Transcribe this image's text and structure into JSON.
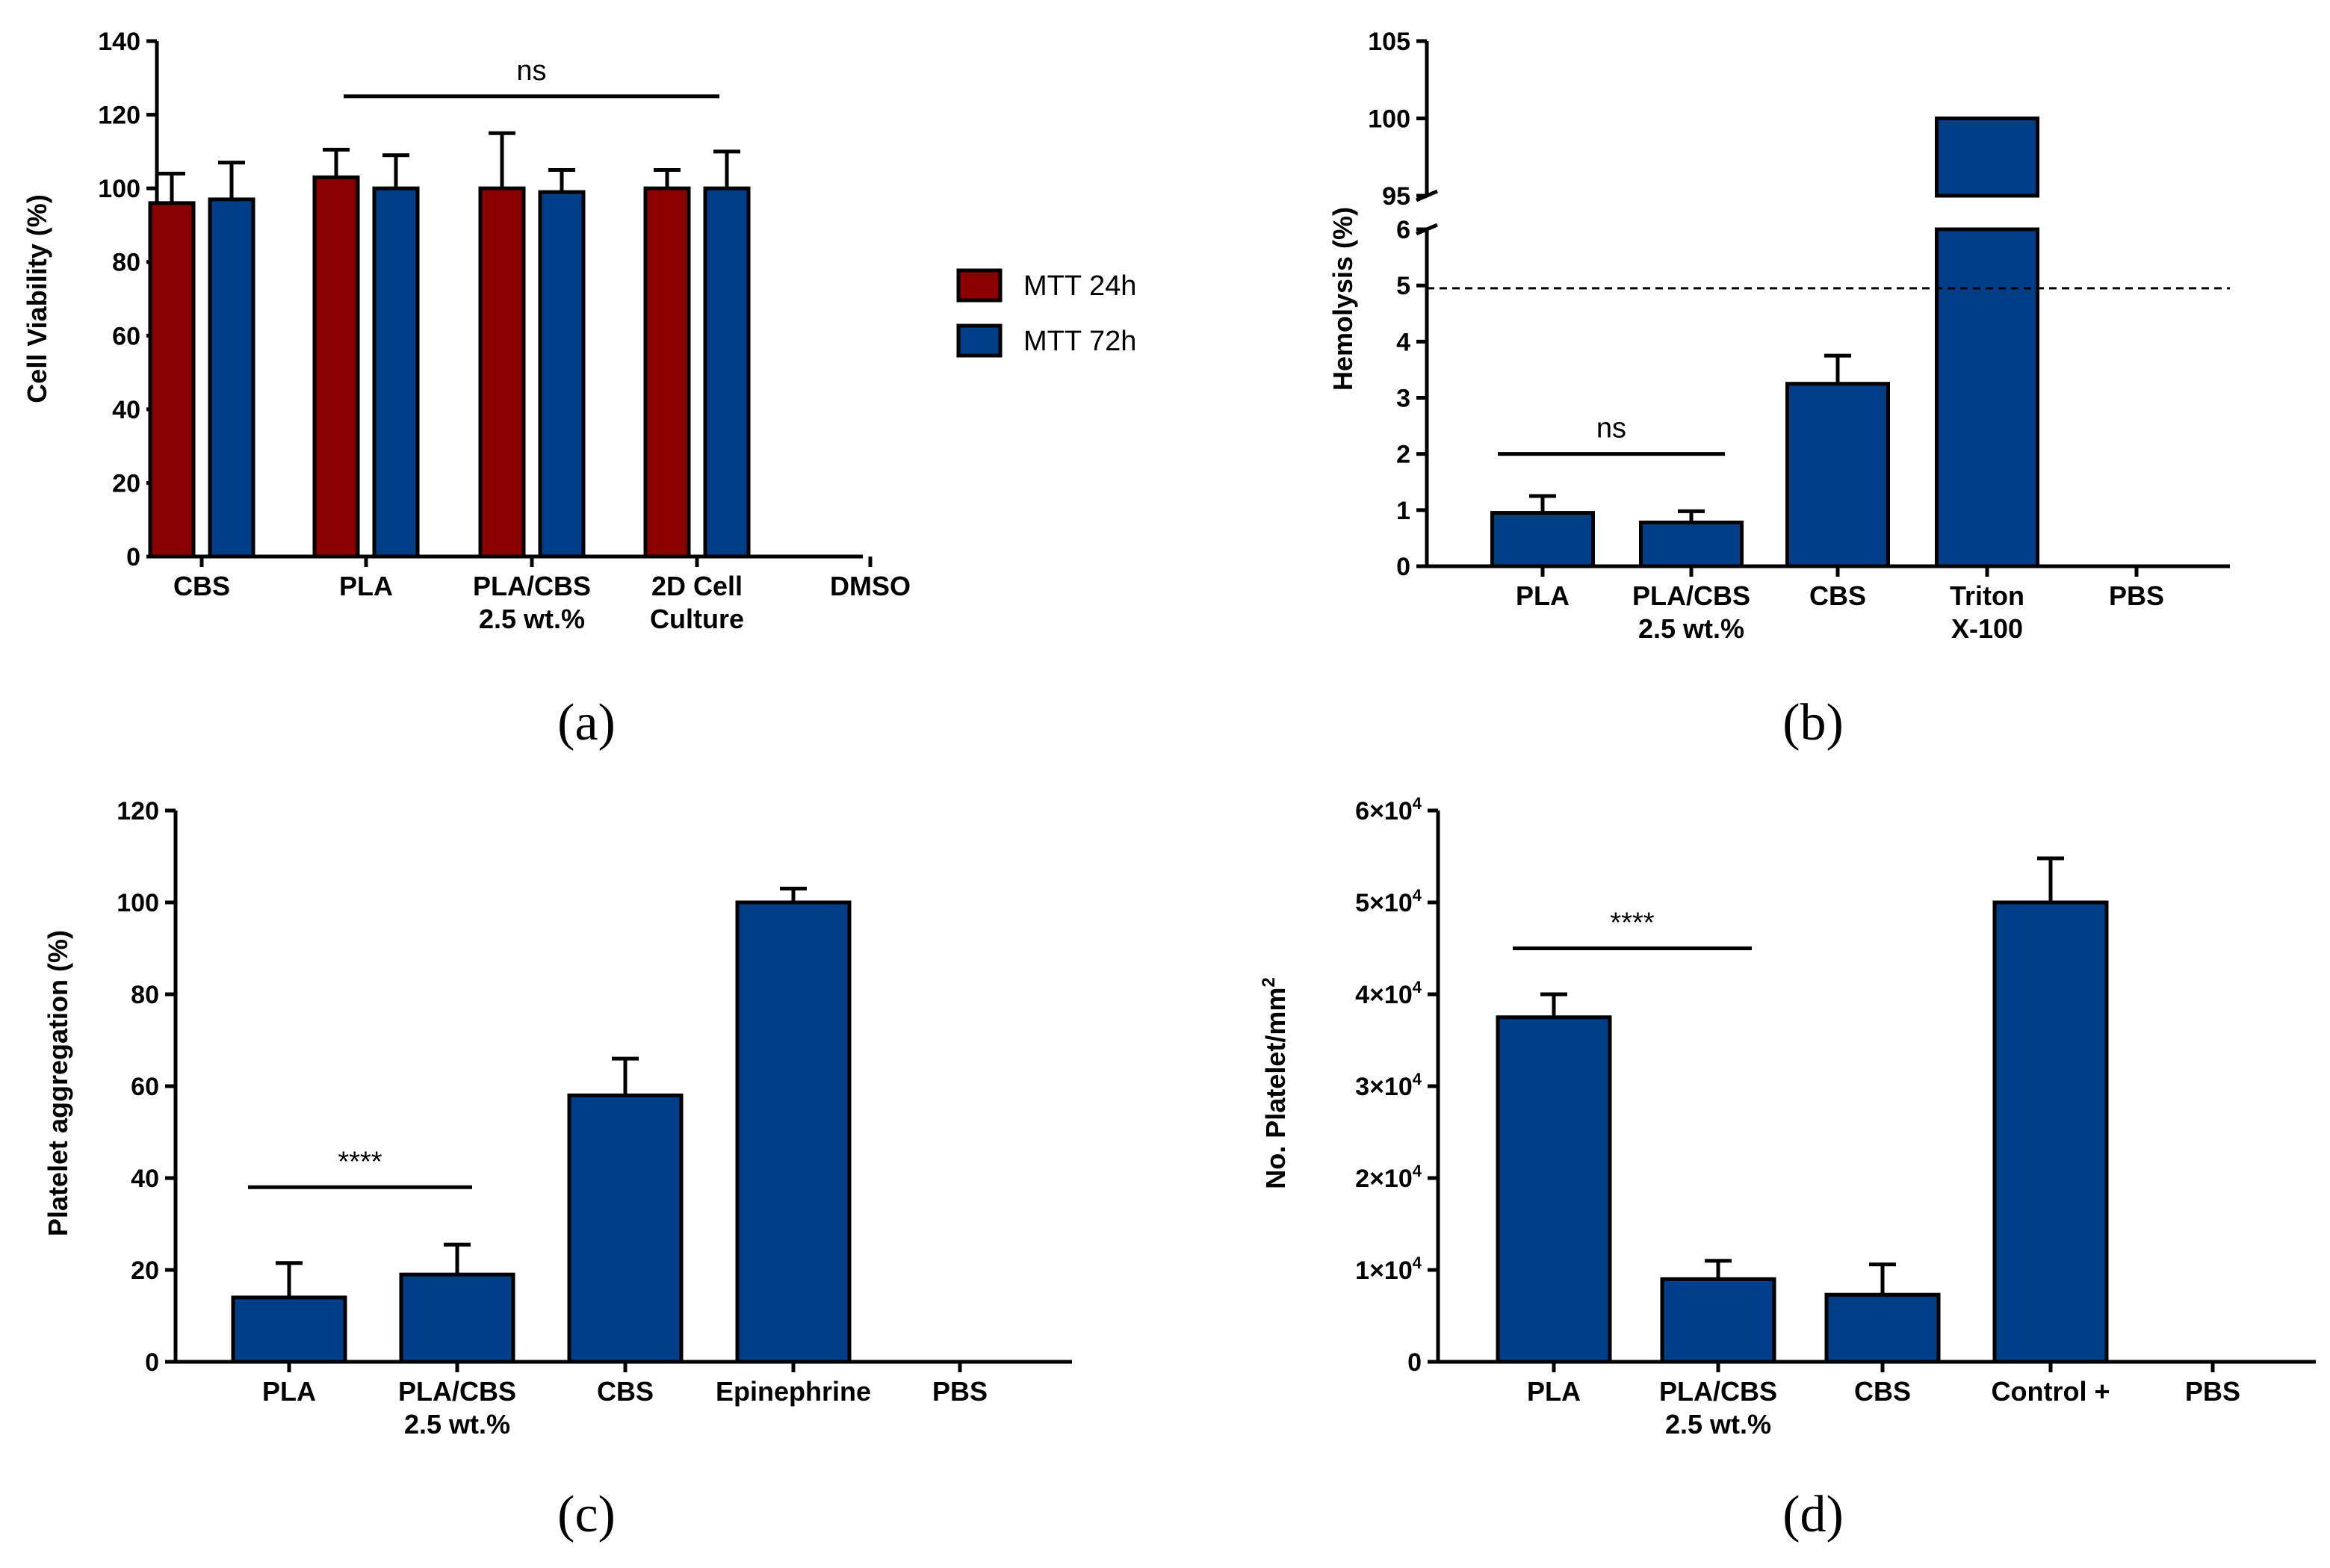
{
  "colors": {
    "mtt24": "#8B0000",
    "mtt72": "#003F87",
    "bar": "#003F87"
  },
  "chart_data": [
    {
      "panel": "(a)",
      "type": "bar",
      "ylabel": "Cell Viability (%)",
      "ylim": [
        0,
        140
      ],
      "yticks": [
        "0",
        "20",
        "40",
        "60",
        "80",
        "100",
        "120",
        "140"
      ],
      "categories": [
        {
          "lines": [
            "CBS"
          ]
        },
        {
          "lines": [
            "PLA"
          ]
        },
        {
          "lines": [
            "PLA/CBS",
            "2.5 wt.%"
          ]
        },
        {
          "lines": [
            "2D Cell",
            "Culture"
          ]
        },
        {
          "lines": [
            "DMSO"
          ]
        }
      ],
      "series": [
        {
          "name": "MTT 24h",
          "values": [
            96,
            103,
            100,
            100,
            0
          ],
          "errors": [
            8,
            7.5,
            15,
            5,
            0
          ]
        },
        {
          "name": "MTT 72h",
          "values": [
            97,
            100,
            99,
            100,
            0
          ],
          "errors": [
            10,
            9,
            6,
            10,
            0
          ]
        }
      ],
      "significance": [
        {
          "label": "ns",
          "from": 1,
          "to": 3,
          "y": 125
        }
      ]
    },
    {
      "panel": "(b)",
      "type": "bar",
      "ylabel": "Hemolysis (%)",
      "ylim_lower": [
        0,
        6
      ],
      "ylim_upper": [
        95,
        105
      ],
      "yticks_lower": [
        "0",
        "1",
        "2",
        "3",
        "4",
        "5",
        "6"
      ],
      "yticks_upper": [
        "95",
        "100",
        "105"
      ],
      "categories": [
        {
          "lines": [
            "PLA"
          ]
        },
        {
          "lines": [
            "PLA/CBS",
            "2.5 wt.%"
          ]
        },
        {
          "lines": [
            "CBS"
          ]
        },
        {
          "lines": [
            "Triton",
            "X-100"
          ]
        },
        {
          "lines": [
            "PBS"
          ]
        }
      ],
      "values": [
        0.95,
        0.78,
        3.25,
        100,
        0
      ],
      "errors": [
        0.3,
        0.2,
        0.5,
        0,
        0
      ],
      "threshold": 4.95,
      "significance": [
        {
          "label": "ns",
          "from": 0,
          "to": 1,
          "y": 2.0
        }
      ]
    },
    {
      "panel": "(c)",
      "type": "bar",
      "ylabel": "Platelet aggregation (%)",
      "ylim": [
        0,
        120
      ],
      "yticks": [
        "0",
        "20",
        "40",
        "60",
        "80",
        "100",
        "120"
      ],
      "categories": [
        {
          "lines": [
            "PLA"
          ]
        },
        {
          "lines": [
            "PLA/CBS",
            "2.5 wt.%"
          ]
        },
        {
          "lines": [
            "CBS"
          ]
        },
        {
          "lines": [
            "Epinephrine"
          ]
        },
        {
          "lines": [
            "PBS"
          ]
        }
      ],
      "values": [
        14,
        19,
        58,
        100,
        0
      ],
      "errors": [
        7.5,
        6.5,
        8,
        3,
        0
      ],
      "significance": [
        {
          "label": "****",
          "from": 0,
          "to": 1,
          "y": 38
        }
      ]
    },
    {
      "panel": "(d)",
      "type": "bar",
      "ylabel": "No. Platelet/mm",
      "ylabel_sup": "2",
      "ylim": [
        0,
        60000
      ],
      "yticks": [
        {
          "m": "0",
          "e": ""
        },
        {
          "m": "1×10",
          "e": "4"
        },
        {
          "m": "2×10",
          "e": "4"
        },
        {
          "m": "3×10",
          "e": "4"
        },
        {
          "m": "4×10",
          "e": "4"
        },
        {
          "m": "5×10",
          "e": "4"
        },
        {
          "m": "6×10",
          "e": "4"
        }
      ],
      "categories": [
        {
          "lines": [
            "PLA"
          ]
        },
        {
          "lines": [
            "PLA/CBS",
            "2.5 wt.%"
          ]
        },
        {
          "lines": [
            "CBS"
          ]
        },
        {
          "lines": [
            "Control +"
          ]
        },
        {
          "lines": [
            "PBS"
          ]
        }
      ],
      "values": [
        37500,
        9000,
        7300,
        50000,
        0
      ],
      "errors": [
        2500,
        2000,
        3300,
        4800,
        0
      ],
      "significance": [
        {
          "label": "****",
          "from": 0,
          "to": 1,
          "y": 45000
        }
      ]
    }
  ]
}
